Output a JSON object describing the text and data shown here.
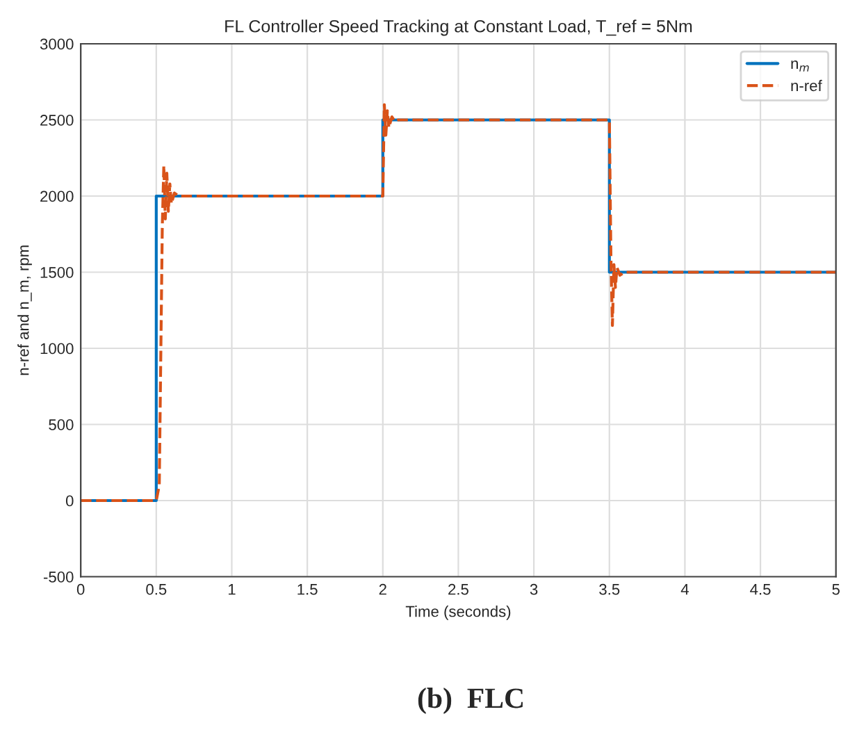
{
  "chart_data": {
    "type": "line",
    "title": "FL Controller Speed Tracking at Constant Load, T_ref = 5Nm",
    "xlabel": "Time (seconds)",
    "ylabel": "n-ref and n_m, rpm",
    "xlim": [
      0,
      5
    ],
    "xticks": [
      0,
      0.5,
      1,
      1.5,
      2,
      2.5,
      3,
      3.5,
      4,
      4.5,
      5
    ],
    "ylim": [
      -500,
      3000
    ],
    "yticks": [
      -500,
      0,
      500,
      1000,
      1500,
      2000,
      2500,
      3000
    ],
    "grid": true,
    "legend": "top right",
    "series": [
      {
        "name": "n$_{m}$",
        "color": "#0072bd",
        "line_style": "solid",
        "x": [
          0,
          0.5,
          0.5,
          2.0,
          2.0,
          3.5,
          3.5,
          5
        ],
        "values": [
          0,
          0,
          2000,
          2000,
          2500,
          2500,
          1500,
          1500
        ]
      },
      {
        "name": "n-ref",
        "color": "#d95319",
        "line_style": "dashed",
        "x": [
          0,
          0.5,
          0.52,
          0.54,
          0.55,
          0.56,
          0.57,
          0.58,
          0.59,
          0.6,
          0.62,
          0.65,
          2.0,
          2.01,
          2.02,
          2.03,
          2.04,
          2.06,
          2.08,
          2.1,
          3.5,
          3.51,
          3.52,
          3.53,
          3.54,
          3.55,
          3.57,
          3.6,
          5
        ],
        "values": [
          0,
          0,
          100,
          1800,
          2200,
          1850,
          2150,
          1900,
          2080,
          1950,
          2020,
          2000,
          2000,
          2600,
          2400,
          2560,
          2450,
          2520,
          2490,
          2500,
          2500,
          1600,
          1150,
          1550,
          1400,
          1530,
          1480,
          1500,
          1500
        ]
      }
    ],
    "annotations": [
      "(b)  FLC"
    ]
  }
}
